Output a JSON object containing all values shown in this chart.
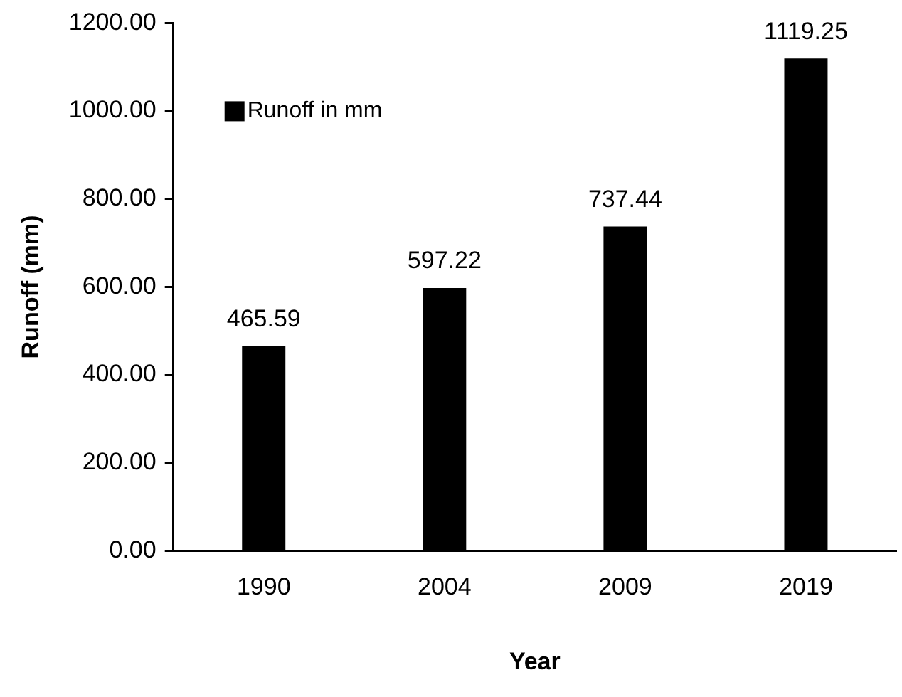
{
  "chart_data": {
    "type": "bar",
    "xlabel": "Year",
    "ylabel": "Runoff (mm)",
    "categories": [
      "1990",
      "2004",
      "2009",
      "2019"
    ],
    "series": [
      {
        "name": "Runoff in mm",
        "color": "#000000",
        "values": [
          465.59,
          597.22,
          737.44,
          1119.25
        ]
      }
    ],
    "ylim": [
      0,
      1200
    ],
    "yticks": [
      {
        "value": 0,
        "label": "0.00"
      },
      {
        "value": 200,
        "label": "200.00"
      },
      {
        "value": 400,
        "label": "400.00"
      },
      {
        "value": 600,
        "label": "600.00"
      },
      {
        "value": 800,
        "label": "800.00"
      },
      {
        "value": 1000,
        "label": "1000.00"
      },
      {
        "value": 1200,
        "label": "1200.00"
      }
    ],
    "grid": false,
    "legend": "top left",
    "data_labels": true
  }
}
